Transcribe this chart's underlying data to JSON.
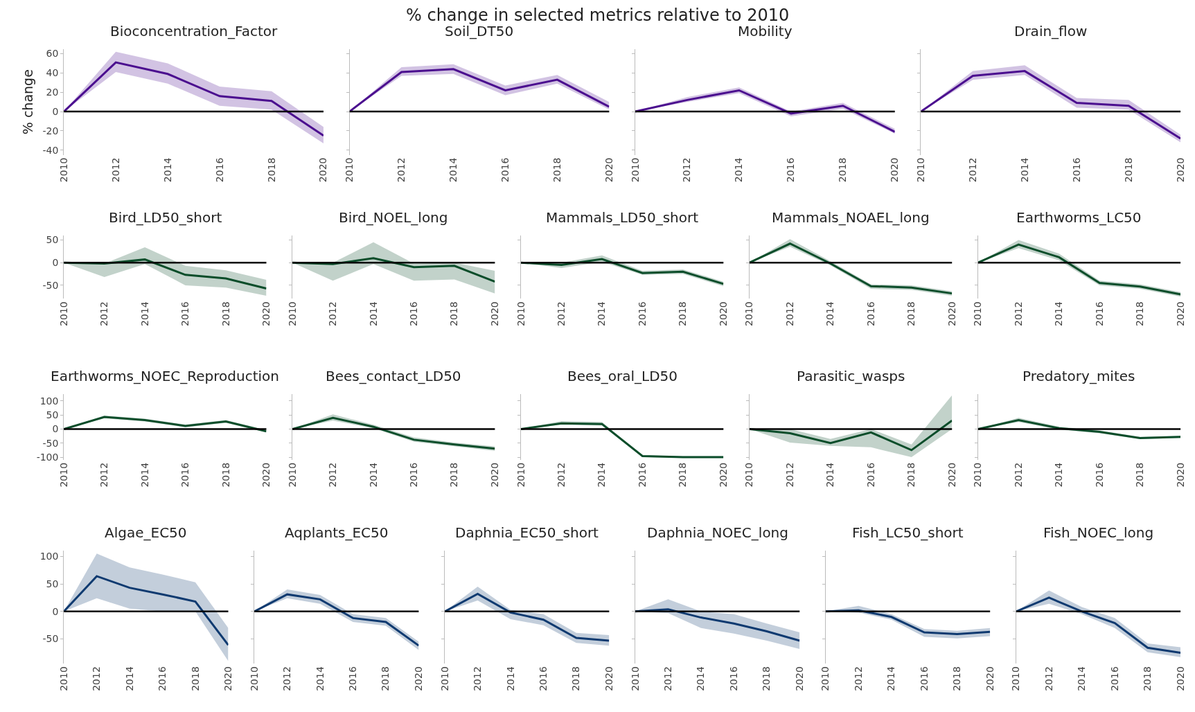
{
  "chart_data": [
    {
      "type": "line",
      "title": "Bioconcentration_Factor",
      "ylabel": "% change",
      "annotations": [
        "% change in selected metrics relative to 2010"
      ],
      "x": [
        2010,
        2012,
        2014,
        2016,
        2018,
        2020
      ],
      "xlim": [
        2010,
        2020
      ],
      "xticks": [
        2010,
        2012,
        2014,
        2016,
        2018,
        2020
      ],
      "ylim": [
        -45,
        65
      ],
      "yticks": [
        -40,
        -20,
        0,
        20,
        40,
        60
      ],
      "ref_lines": [
        {
          "axis": "y",
          "value": 0,
          "color": "#000000"
        }
      ],
      "series": [
        {
          "color": "#4b0f8f",
          "values": [
            0,
            51,
            39,
            16,
            11,
            -25
          ],
          "lower": [
            0,
            41,
            29,
            6,
            2,
            -33
          ],
          "upper": [
            0,
            62,
            50,
            26,
            21,
            -16
          ]
        }
      ]
    },
    {
      "type": "line",
      "title": "Soil_DT50",
      "tick_labels": "x",
      "x": [
        2010,
        2012,
        2014,
        2016,
        2018,
        2020
      ],
      "xlim": [
        2010,
        2020
      ],
      "xticks": [
        2010,
        2012,
        2014,
        2016,
        2018,
        2020
      ],
      "ylim": [
        -45,
        65
      ],
      "yticks": [
        -40,
        -20,
        0,
        20,
        40,
        60
      ],
      "ref_lines": [
        {
          "axis": "y",
          "value": 0,
          "color": "#000000"
        }
      ],
      "series": [
        {
          "color": "#4b0f8f",
          "values": [
            0,
            41,
            44,
            22,
            33,
            5
          ],
          "lower": [
            0,
            37,
            39,
            17,
            29,
            2
          ],
          "upper": [
            0,
            46,
            49,
            27,
            38,
            10
          ]
        }
      ]
    },
    {
      "type": "line",
      "title": "Mobility",
      "tick_labels": "x",
      "x": [
        2010,
        2012,
        2014,
        2016,
        2018,
        2020
      ],
      "xlim": [
        2010,
        2020
      ],
      "xticks": [
        2010,
        2012,
        2014,
        2016,
        2018,
        2020
      ],
      "ylim": [
        -45,
        65
      ],
      "yticks": [
        -40,
        -20,
        0,
        20,
        40,
        60
      ],
      "ref_lines": [
        {
          "axis": "y",
          "value": 0,
          "color": "#000000"
        }
      ],
      "series": [
        {
          "color": "#4b0f8f",
          "values": [
            0,
            12,
            22,
            -2,
            6,
            -21
          ],
          "lower": [
            0,
            10,
            19,
            -5,
            3,
            -23
          ],
          "upper": [
            0,
            15,
            25,
            0,
            9,
            -18
          ]
        }
      ]
    },
    {
      "type": "line",
      "title": "Drain_flow",
      "tick_labels": "x",
      "x": [
        2010,
        2012,
        2014,
        2016,
        2018,
        2020
      ],
      "xlim": [
        2010,
        2020
      ],
      "xticks": [
        2010,
        2012,
        2014,
        2016,
        2018,
        2020
      ],
      "ylim": [
        -45,
        65
      ],
      "yticks": [
        -40,
        -20,
        0,
        20,
        40,
        60
      ],
      "ref_lines": [
        {
          "axis": "y",
          "value": 0,
          "color": "#000000"
        }
      ],
      "series": [
        {
          "color": "#4b0f8f",
          "values": [
            0,
            37,
            42,
            9,
            6,
            -28
          ],
          "lower": [
            0,
            33,
            38,
            4,
            2,
            -32
          ],
          "upper": [
            0,
            42,
            48,
            14,
            12,
            -24
          ]
        }
      ]
    },
    {
      "type": "line",
      "title": "Bird_LD50_short",
      "x": [
        2010,
        2012,
        2014,
        2016,
        2018,
        2020
      ],
      "xlim": [
        2010,
        2020
      ],
      "xticks": [
        2010,
        2012,
        2014,
        2016,
        2018,
        2020
      ],
      "ylim": [
        -80,
        60
      ],
      "yticks": [
        -50,
        0,
        50
      ],
      "ref_lines": [
        {
          "axis": "y",
          "value": 0,
          "color": "#000000"
        }
      ],
      "series": [
        {
          "color": "#0b4d2a",
          "values": [
            0,
            -2,
            7,
            -27,
            -35,
            -57
          ],
          "lower": [
            0,
            -32,
            -3,
            -50,
            -55,
            -73
          ],
          "upper": [
            0,
            -2,
            34,
            -7,
            -17,
            -38
          ]
        }
      ]
    },
    {
      "type": "line",
      "title": "Bird_NOEL_long",
      "tick_labels": "x",
      "x": [
        2010,
        2012,
        2014,
        2016,
        2018,
        2020
      ],
      "xlim": [
        2010,
        2020
      ],
      "xticks": [
        2010,
        2012,
        2014,
        2016,
        2018,
        2020
      ],
      "ylim": [
        -80,
        60
      ],
      "yticks": [
        -50,
        0,
        50
      ],
      "ref_lines": [
        {
          "axis": "y",
          "value": 0,
          "color": "#000000"
        }
      ],
      "series": [
        {
          "color": "#0b4d2a",
          "values": [
            0,
            -3,
            10,
            -10,
            -7,
            -42
          ],
          "lower": [
            0,
            -40,
            -3,
            -40,
            -37,
            -68
          ],
          "upper": [
            0,
            0,
            45,
            -2,
            0,
            -18
          ]
        }
      ]
    },
    {
      "type": "line",
      "title": "Mammals_LD50_short",
      "tick_labels": "x",
      "x": [
        2010,
        2012,
        2014,
        2016,
        2018,
        2020
      ],
      "xlim": [
        2010,
        2020
      ],
      "xticks": [
        2010,
        2012,
        2014,
        2016,
        2018,
        2020
      ],
      "ylim": [
        -80,
        60
      ],
      "yticks": [
        -50,
        0,
        50
      ],
      "ref_lines": [
        {
          "axis": "y",
          "value": 0,
          "color": "#000000"
        }
      ],
      "series": [
        {
          "color": "#0b4d2a",
          "values": [
            0,
            -5,
            8,
            -23,
            -20,
            -47
          ],
          "lower": [
            0,
            -12,
            2,
            -27,
            -25,
            -52
          ],
          "upper": [
            0,
            0,
            16,
            -18,
            -15,
            -42
          ]
        }
      ]
    },
    {
      "type": "line",
      "title": "Mammals_NOAEL_long",
      "tick_labels": "x",
      "x": [
        2010,
        2012,
        2014,
        2016,
        2018,
        2020
      ],
      "xlim": [
        2010,
        2020
      ],
      "xticks": [
        2010,
        2012,
        2014,
        2016,
        2018,
        2020
      ],
      "ylim": [
        -80,
        60
      ],
      "yticks": [
        -50,
        0,
        50
      ],
      "ref_lines": [
        {
          "axis": "y",
          "value": 0,
          "color": "#000000"
        }
      ],
      "series": [
        {
          "color": "#0b4d2a",
          "values": [
            0,
            42,
            -2,
            -52,
            -55,
            -68
          ],
          "lower": [
            0,
            35,
            -6,
            -58,
            -60,
            -73
          ],
          "upper": [
            0,
            52,
            3,
            -48,
            -50,
            -63
          ]
        }
      ]
    },
    {
      "type": "line",
      "title": "Earthworms_LC50",
      "tick_labels": "x",
      "x": [
        2010,
        2012,
        2014,
        2016,
        2018,
        2020
      ],
      "xlim": [
        2010,
        2020
      ],
      "xticks": [
        2010,
        2012,
        2014,
        2016,
        2018,
        2020
      ],
      "ylim": [
        -80,
        60
      ],
      "yticks": [
        -50,
        0,
        50
      ],
      "ref_lines": [
        {
          "axis": "y",
          "value": 0,
          "color": "#000000"
        }
      ],
      "series": [
        {
          "color": "#0b4d2a",
          "values": [
            0,
            40,
            12,
            -45,
            -53,
            -70
          ],
          "lower": [
            0,
            32,
            5,
            -50,
            -58,
            -75
          ],
          "upper": [
            0,
            50,
            20,
            -40,
            -48,
            -65
          ]
        }
      ]
    },
    {
      "type": "line",
      "title": "Earthworms_NOEC_Reproduction",
      "x": [
        2010,
        2012,
        2014,
        2016,
        2018,
        2020
      ],
      "xlim": [
        2010,
        2020
      ],
      "xticks": [
        2010,
        2012,
        2014,
        2016,
        2018,
        2020
      ],
      "ylim": [
        -110,
        125
      ],
      "yticks": [
        -100,
        -50,
        0,
        50,
        100
      ],
      "ref_lines": [
        {
          "axis": "y",
          "value": 0,
          "color": "#000000"
        }
      ],
      "series": [
        {
          "color": "#0b4d2a",
          "values": [
            0,
            43,
            32,
            11,
            27,
            -8
          ],
          "lower": [
            0,
            38,
            27,
            6,
            22,
            -12
          ],
          "upper": [
            0,
            48,
            37,
            16,
            32,
            -4
          ]
        }
      ]
    },
    {
      "type": "line",
      "title": "Bees_contact_LD50",
      "tick_labels": "x",
      "x": [
        2010,
        2012,
        2014,
        2016,
        2018,
        2020
      ],
      "xlim": [
        2010,
        2020
      ],
      "xticks": [
        2010,
        2012,
        2014,
        2016,
        2018,
        2020
      ],
      "ylim": [
        -110,
        125
      ],
      "yticks": [
        -100,
        -50,
        0,
        50,
        100
      ],
      "ref_lines": [
        {
          "axis": "y",
          "value": 0,
          "color": "#000000"
        }
      ],
      "series": [
        {
          "color": "#0b4d2a",
          "values": [
            0,
            40,
            8,
            -38,
            -55,
            -70
          ],
          "lower": [
            0,
            30,
            3,
            -45,
            -62,
            -78
          ],
          "upper": [
            0,
            52,
            15,
            -30,
            -48,
            -62
          ]
        }
      ]
    },
    {
      "type": "line",
      "title": "Bees_oral_LD50",
      "tick_labels": "x",
      "x": [
        2010,
        2012,
        2014,
        2016,
        2018,
        2020
      ],
      "xlim": [
        2010,
        2020
      ],
      "xticks": [
        2010,
        2012,
        2014,
        2016,
        2018,
        2020
      ],
      "ylim": [
        -110,
        125
      ],
      "yticks": [
        -100,
        -50,
        0,
        50,
        100
      ],
      "ref_lines": [
        {
          "axis": "y",
          "value": 0,
          "color": "#000000"
        }
      ],
      "series": [
        {
          "color": "#0b4d2a",
          "values": [
            0,
            20,
            18,
            -96,
            -100,
            -100
          ],
          "lower": [
            0,
            15,
            12,
            -99,
            -103,
            -103
          ],
          "upper": [
            0,
            28,
            25,
            -93,
            -97,
            -97
          ]
        }
      ]
    },
    {
      "type": "line",
      "title": "Parasitic_wasps",
      "tick_labels": "x",
      "x": [
        2010,
        2012,
        2014,
        2016,
        2018,
        2020
      ],
      "xlim": [
        2010,
        2020
      ],
      "xticks": [
        2010,
        2012,
        2014,
        2016,
        2018,
        2020
      ],
      "ylim": [
        -110,
        125
      ],
      "yticks": [
        -100,
        -50,
        0,
        50,
        100
      ],
      "ref_lines": [
        {
          "axis": "y",
          "value": 0,
          "color": "#000000"
        }
      ],
      "series": [
        {
          "color": "#0b4d2a",
          "values": [
            0,
            -15,
            -50,
            -12,
            -75,
            30
          ],
          "lower": [
            0,
            -48,
            -60,
            -65,
            -100,
            0
          ],
          "upper": [
            0,
            0,
            -35,
            0,
            -55,
            120
          ]
        }
      ]
    },
    {
      "type": "line",
      "title": "Predatory_mites",
      "tick_labels": "x",
      "x": [
        2010,
        2012,
        2014,
        2016,
        2018,
        2020
      ],
      "xlim": [
        2010,
        2020
      ],
      "xticks": [
        2010,
        2012,
        2014,
        2016,
        2018,
        2020
      ],
      "ylim": [
        -110,
        125
      ],
      "yticks": [
        -100,
        -50,
        0,
        50,
        100
      ],
      "ref_lines": [
        {
          "axis": "y",
          "value": 0,
          "color": "#000000"
        }
      ],
      "series": [
        {
          "color": "#0b4d2a",
          "values": [
            0,
            32,
            3,
            -10,
            -32,
            -28
          ],
          "lower": [
            0,
            25,
            -2,
            -15,
            -36,
            -32
          ],
          "upper": [
            0,
            40,
            8,
            -5,
            -28,
            -24
          ]
        }
      ]
    },
    {
      "type": "line",
      "title": "Algae_EC50",
      "x": [
        2010,
        2012,
        2014,
        2016,
        2018,
        2020
      ],
      "xlim": [
        2010,
        2020
      ],
      "xticks": [
        2010,
        2012,
        2014,
        2016,
        2018,
        2020
      ],
      "ylim": [
        -95,
        110
      ],
      "yticks": [
        -50,
        0,
        50,
        100
      ],
      "ref_lines": [
        {
          "axis": "y",
          "value": 0,
          "color": "#000000"
        }
      ],
      "series": [
        {
          "color": "#0f3a70",
          "values": [
            0,
            64,
            43,
            31,
            18,
            -61
          ],
          "lower": [
            0,
            24,
            5,
            0,
            0,
            -90
          ],
          "upper": [
            0,
            105,
            80,
            67,
            53,
            -30
          ]
        }
      ]
    },
    {
      "type": "line",
      "title": "Aqplants_EC50",
      "tick_labels": "x",
      "x": [
        2010,
        2012,
        2014,
        2016,
        2018,
        2020
      ],
      "xlim": [
        2010,
        2020
      ],
      "xticks": [
        2010,
        2012,
        2014,
        2016,
        2018,
        2020
      ],
      "ylim": [
        -95,
        110
      ],
      "yticks": [
        -50,
        0,
        50,
        100
      ],
      "ref_lines": [
        {
          "axis": "y",
          "value": 0,
          "color": "#000000"
        }
      ],
      "series": [
        {
          "color": "#0f3a70",
          "values": [
            0,
            31,
            22,
            -12,
            -19,
            -62
          ],
          "lower": [
            0,
            24,
            14,
            -19,
            -26,
            -70
          ],
          "upper": [
            0,
            40,
            30,
            -5,
            -12,
            -55
          ]
        }
      ]
    },
    {
      "type": "line",
      "title": "Daphnia_EC50_short",
      "tick_labels": "x",
      "x": [
        2010,
        2012,
        2014,
        2016,
        2018,
        2020
      ],
      "xlim": [
        2010,
        2020
      ],
      "xticks": [
        2010,
        2012,
        2014,
        2016,
        2018,
        2020
      ],
      "ylim": [
        -95,
        110
      ],
      "yticks": [
        -50,
        0,
        50,
        100
      ],
      "ref_lines": [
        {
          "axis": "y",
          "value": 0,
          "color": "#000000"
        }
      ],
      "series": [
        {
          "color": "#0f3a70",
          "values": [
            0,
            32,
            -2,
            -15,
            -48,
            -53
          ],
          "lower": [
            0,
            20,
            -14,
            -25,
            -57,
            -62
          ],
          "upper": [
            0,
            45,
            3,
            -5,
            -39,
            -43
          ]
        }
      ]
    },
    {
      "type": "line",
      "title": "Daphnia_NOEC_long",
      "tick_labels": "x",
      "x": [
        2010,
        2012,
        2014,
        2016,
        2018,
        2020
      ],
      "xlim": [
        2010,
        2020
      ],
      "xticks": [
        2010,
        2012,
        2014,
        2016,
        2018,
        2020
      ],
      "ylim": [
        -95,
        110
      ],
      "yticks": [
        -50,
        0,
        50,
        100
      ],
      "ref_lines": [
        {
          "axis": "y",
          "value": 0,
          "color": "#000000"
        }
      ],
      "series": [
        {
          "color": "#0f3a70",
          "values": [
            0,
            4,
            -11,
            -22,
            -36,
            -53
          ],
          "lower": [
            0,
            -3,
            -30,
            -40,
            -53,
            -68
          ],
          "upper": [
            0,
            22,
            0,
            -5,
            -22,
            -38
          ]
        }
      ]
    },
    {
      "type": "line",
      "title": "Fish_LC50_short",
      "tick_labels": "x",
      "x": [
        2010,
        2012,
        2014,
        2016,
        2018,
        2020
      ],
      "xlim": [
        2010,
        2020
      ],
      "xticks": [
        2010,
        2012,
        2014,
        2016,
        2018,
        2020
      ],
      "ylim": [
        -95,
        110
      ],
      "yticks": [
        -50,
        0,
        50,
        100
      ],
      "ref_lines": [
        {
          "axis": "y",
          "value": 0,
          "color": "#000000"
        }
      ],
      "series": [
        {
          "color": "#0f3a70",
          "values": [
            0,
            2,
            -10,
            -38,
            -41,
            -37
          ],
          "lower": [
            0,
            -2,
            -15,
            -46,
            -49,
            -45
          ],
          "upper": [
            0,
            10,
            -5,
            -32,
            -35,
            -30
          ]
        }
      ]
    },
    {
      "type": "line",
      "title": "Fish_NOEC_long",
      "tick_labels": "x",
      "x": [
        2010,
        2012,
        2014,
        2016,
        2018,
        2020
      ],
      "xlim": [
        2010,
        2020
      ],
      "xticks": [
        2010,
        2012,
        2014,
        2016,
        2018,
        2020
      ],
      "ylim": [
        -95,
        110
      ],
      "yticks": [
        -50,
        0,
        50,
        100
      ],
      "ref_lines": [
        {
          "axis": "y",
          "value": 0,
          "color": "#000000"
        }
      ],
      "series": [
        {
          "color": "#0f3a70",
          "values": [
            0,
            25,
            0,
            -21,
            -66,
            -75
          ],
          "lower": [
            0,
            14,
            -5,
            -30,
            -74,
            -83
          ],
          "upper": [
            0,
            38,
            8,
            -12,
            -58,
            -65
          ]
        }
      ]
    }
  ]
}
